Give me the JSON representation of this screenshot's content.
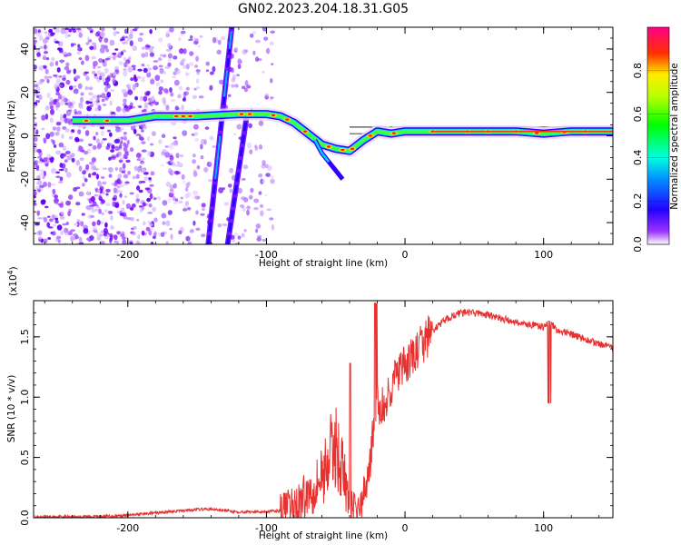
{
  "title": "GN02.2023.204.18.31.G05",
  "chart_data": [
    {
      "type": "heatmap",
      "name": "spectrogram",
      "xlabel": "Height of straight line (km)",
      "ylabel": "Frequency (Hz)",
      "xlim": [
        -268,
        150
      ],
      "ylim": [
        -50,
        50
      ],
      "xticks": [
        -200,
        -100,
        0,
        100
      ],
      "xtick_labels": [
        "-200",
        "-100",
        "0",
        "100"
      ],
      "yticks": [
        -40,
        -20,
        0,
        20,
        40
      ],
      "ytick_labels": [
        "-40",
        "-20",
        "0",
        "20",
        "40"
      ],
      "colorbar": {
        "label": "Normalized spectral amplitude",
        "range": [
          0,
          1
        ],
        "ticks": [
          0,
          0.2,
          0.4,
          0.6,
          0.8
        ],
        "tick_labels": [
          "0.0",
          "0.2",
          "0.4",
          "0.6",
          "0.8"
        ],
        "colormap": [
          "#ffffff",
          "#8000ff",
          "#0000ff",
          "#00ffff",
          "#00ff00",
          "#ffff00",
          "#ff0000",
          "#ff0080"
        ]
      },
      "ridge": {
        "x": [
          -240,
          -200,
          -180,
          -150,
          -120,
          -100,
          -90,
          -80,
          -70,
          -60,
          -50,
          -40,
          -30,
          -20,
          -10,
          0,
          20,
          40,
          60,
          80,
          100,
          120,
          150
        ],
        "y": [
          7,
          7,
          9,
          9,
          10,
          10,
          9,
          6,
          1,
          -4,
          -6,
          -7,
          -2,
          2,
          1,
          2,
          2,
          2,
          2,
          2,
          1,
          2,
          2
        ]
      },
      "diagonal_traces": [
        {
          "x": [
            -142,
            -125
          ],
          "y": [
            -50,
            50
          ]
        },
        {
          "x": [
            -128,
            -114
          ],
          "y": [
            -50,
            10
          ]
        }
      ],
      "guide_lines_y": [
        4,
        1
      ]
    },
    {
      "type": "line",
      "name": "snr",
      "xlabel": "Height of straight line (km)",
      "ylabel": "SNR (10 * v/v)",
      "scale_note_prefix": "(x10",
      "scale_note_exp": "4",
      "scale_note_suffix": ")",
      "xlim": [
        -268,
        150
      ],
      "ylim": [
        0,
        1.8
      ],
      "xticks": [
        -200,
        -100,
        0,
        100
      ],
      "xtick_labels": [
        "-200",
        "-100",
        "0",
        "100"
      ],
      "yticks": [
        0,
        0.5,
        1.0,
        1.5
      ],
      "ytick_labels": [
        "0.0",
        "0.5",
        "1.0",
        "1.5"
      ],
      "series": [
        {
          "color": "#e8312f",
          "x": [
            -268,
            -250,
            -220,
            -200,
            -180,
            -160,
            -150,
            -140,
            -120,
            -100,
            -90,
            -80,
            -70,
            -60,
            -55,
            -50,
            -45,
            -40,
            -35,
            -30,
            -25,
            -22,
            -20,
            -15,
            -10,
            -5,
            0,
            10,
            20,
            30,
            40,
            50,
            60,
            70,
            80,
            90,
            100,
            105,
            110,
            120,
            130,
            140,
            150
          ],
          "y": [
            0.0,
            0.01,
            0.01,
            0.02,
            0.04,
            0.06,
            0.07,
            0.07,
            0.05,
            0.05,
            0.06,
            0.1,
            0.2,
            0.35,
            0.5,
            0.6,
            0.4,
            0.1,
            0.05,
            0.15,
            0.5,
            0.8,
            0.95,
            0.9,
            1.1,
            1.2,
            1.25,
            1.4,
            1.55,
            1.65,
            1.7,
            1.7,
            1.68,
            1.65,
            1.62,
            1.6,
            1.58,
            1.62,
            1.55,
            1.52,
            1.48,
            1.44,
            1.4
          ]
        }
      ]
    }
  ]
}
